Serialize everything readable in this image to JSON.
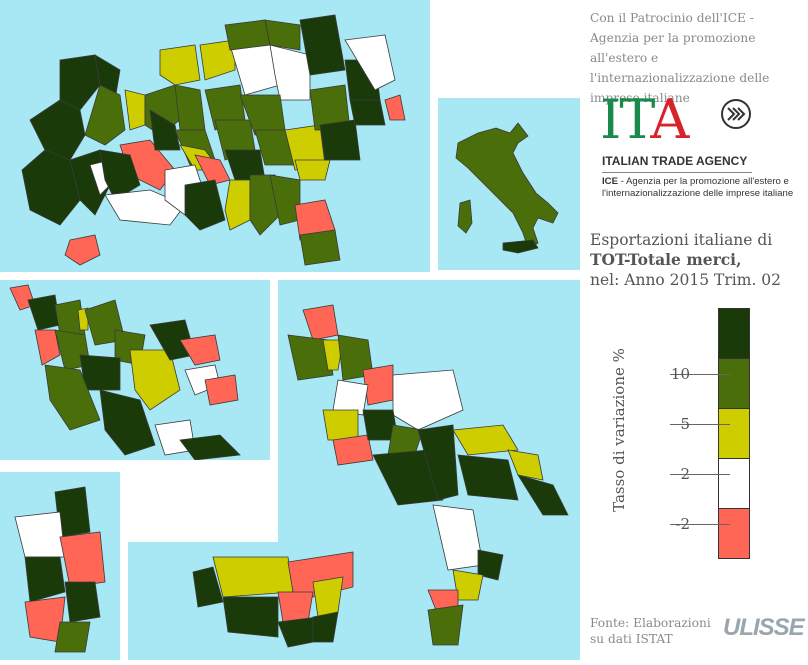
{
  "patronage_text": "Con il Patrocinio dell'ICE - Agenzia per la promozione all'estero e l'internazionalizzazione delle imprese italiane",
  "logo": {
    "letters": "ITA",
    "name": "ITALIAN TRADE AGENCY",
    "sub_bold": "ICE",
    "sub_line1": " - Agenzia per la promozione all'estero e",
    "sub_line2": "l'internazionalizzazione delle imprese italiane"
  },
  "title": {
    "line1": "Esportazioni italiane di",
    "metric": "TOT-Totale merci,",
    "line3": "nel: Anno 2015 Trim. 02"
  },
  "legend": {
    "axis_label": "Tasso di variazione %",
    "classes": [
      {
        "color": "#1a3a0a"
      },
      {
        "color": "#4a6e0a"
      },
      {
        "color": "#cdcd00"
      },
      {
        "color": "#ffffff"
      },
      {
        "color": "#ff6655"
      }
    ],
    "ticks": [
      "10",
      "5",
      "2",
      "-2"
    ]
  },
  "source": {
    "line1": "Fonte: Elaborazioni",
    "line2": "su dati ISTAT",
    "brand": "ULISSE"
  },
  "colors": {
    "sea": "#a8e8f4",
    "dark_green": "#1a3a0a",
    "mid_green": "#4a6e0a",
    "yellow": "#cdcd00",
    "white": "#ffffff",
    "red": "#ff6655"
  }
}
